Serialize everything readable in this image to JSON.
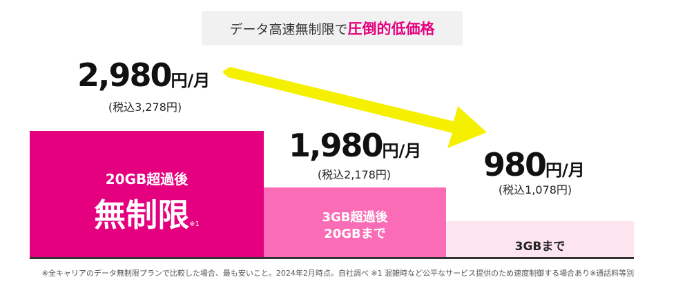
{
  "header": {
    "text": "データ高速無制限で",
    "highlight": "圧倒的低価格"
  },
  "plans": [
    {
      "price": "2,980",
      "unit": "円/月",
      "tax": "(税込3,278円)",
      "bar_lines": [
        "20GB超過後",
        "無制限"
      ],
      "note": "※1"
    },
    {
      "price": "1,980",
      "unit": "円/月",
      "tax": "(税込2,178円)",
      "bar_lines": [
        "3GB超過後",
        "20GBまで"
      ]
    },
    {
      "price": "980",
      "unit": "円/月",
      "tax": "(税込1,078円)",
      "bar_lines": [
        "3GBまで"
      ]
    }
  ],
  "footnote": "※全キャリアのデータ無制限プランで比較した場合、最も安いこと。2024年2月時点。自社調べ ※1 混雑時など公平なサービス提供のため速度制御する場合あり※通話料等別"
}
